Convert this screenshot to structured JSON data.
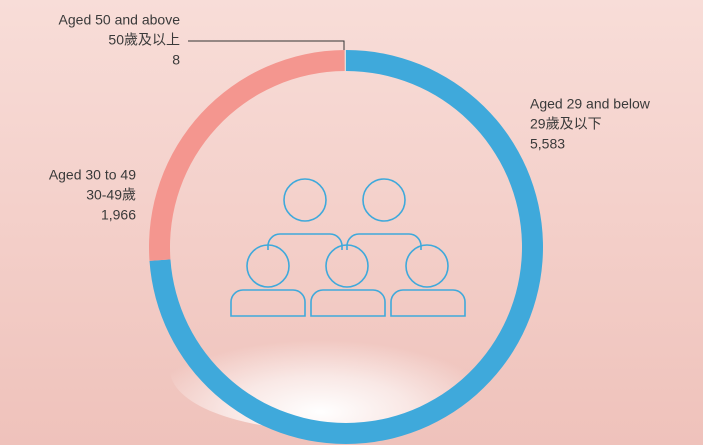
{
  "chart_data": {
    "type": "donut",
    "categories": [
      "Aged 29 and below",
      "Aged 30 to 49",
      "Aged 50 and above"
    ],
    "subcategories": [
      "29歲及以下",
      "30-49歲",
      "50歲及以上"
    ],
    "values": [
      5583,
      1966,
      8
    ],
    "value_labels": [
      "5,583",
      "1,966",
      "8"
    ],
    "colors": [
      "#3fa9db",
      "#f4968f",
      "#dcdcdc"
    ]
  }
}
